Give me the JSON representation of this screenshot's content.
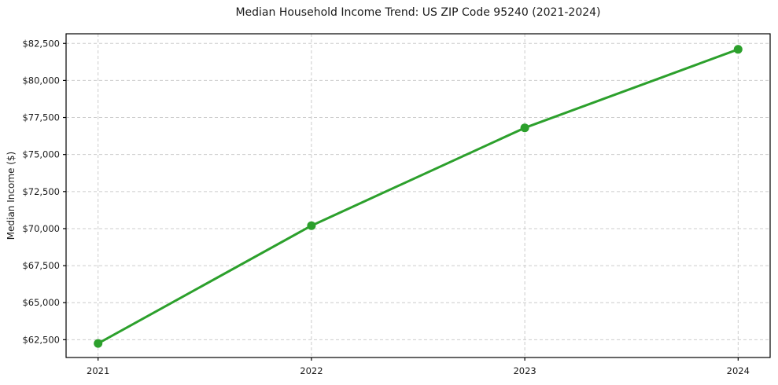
{
  "chart_data": {
    "type": "line",
    "title": "Median Household Income Trend: US ZIP Code 95240 (2021-2024)",
    "xlabel": "",
    "ylabel": "Median Income ($)",
    "x": [
      2021,
      2022,
      2023,
      2024
    ],
    "x_tick_labels": [
      "2021",
      "2022",
      "2023",
      "2024"
    ],
    "values": [
      62250,
      70200,
      76800,
      82100
    ],
    "y_ticks": [
      62500,
      65000,
      67500,
      70000,
      72500,
      75000,
      77500,
      80000,
      82500
    ],
    "y_tick_labels": [
      "$62,500",
      "$65,000",
      "$67,500",
      "$70,000",
      "$72,500",
      "$75,000",
      "$77,500",
      "$80,000",
      "$82,500"
    ],
    "xlim": [
      2020.85,
      2024.15
    ],
    "ylim": [
      61300,
      83150
    ],
    "grid": true,
    "grid_style": "dashed",
    "legend": false,
    "marker": "circle",
    "colors": {
      "line": "#2ca02c",
      "marker": "#2ca02c",
      "grid": "#cccccc",
      "axis": "#000000",
      "text": "#1a1a1a",
      "background": "#ffffff"
    }
  }
}
